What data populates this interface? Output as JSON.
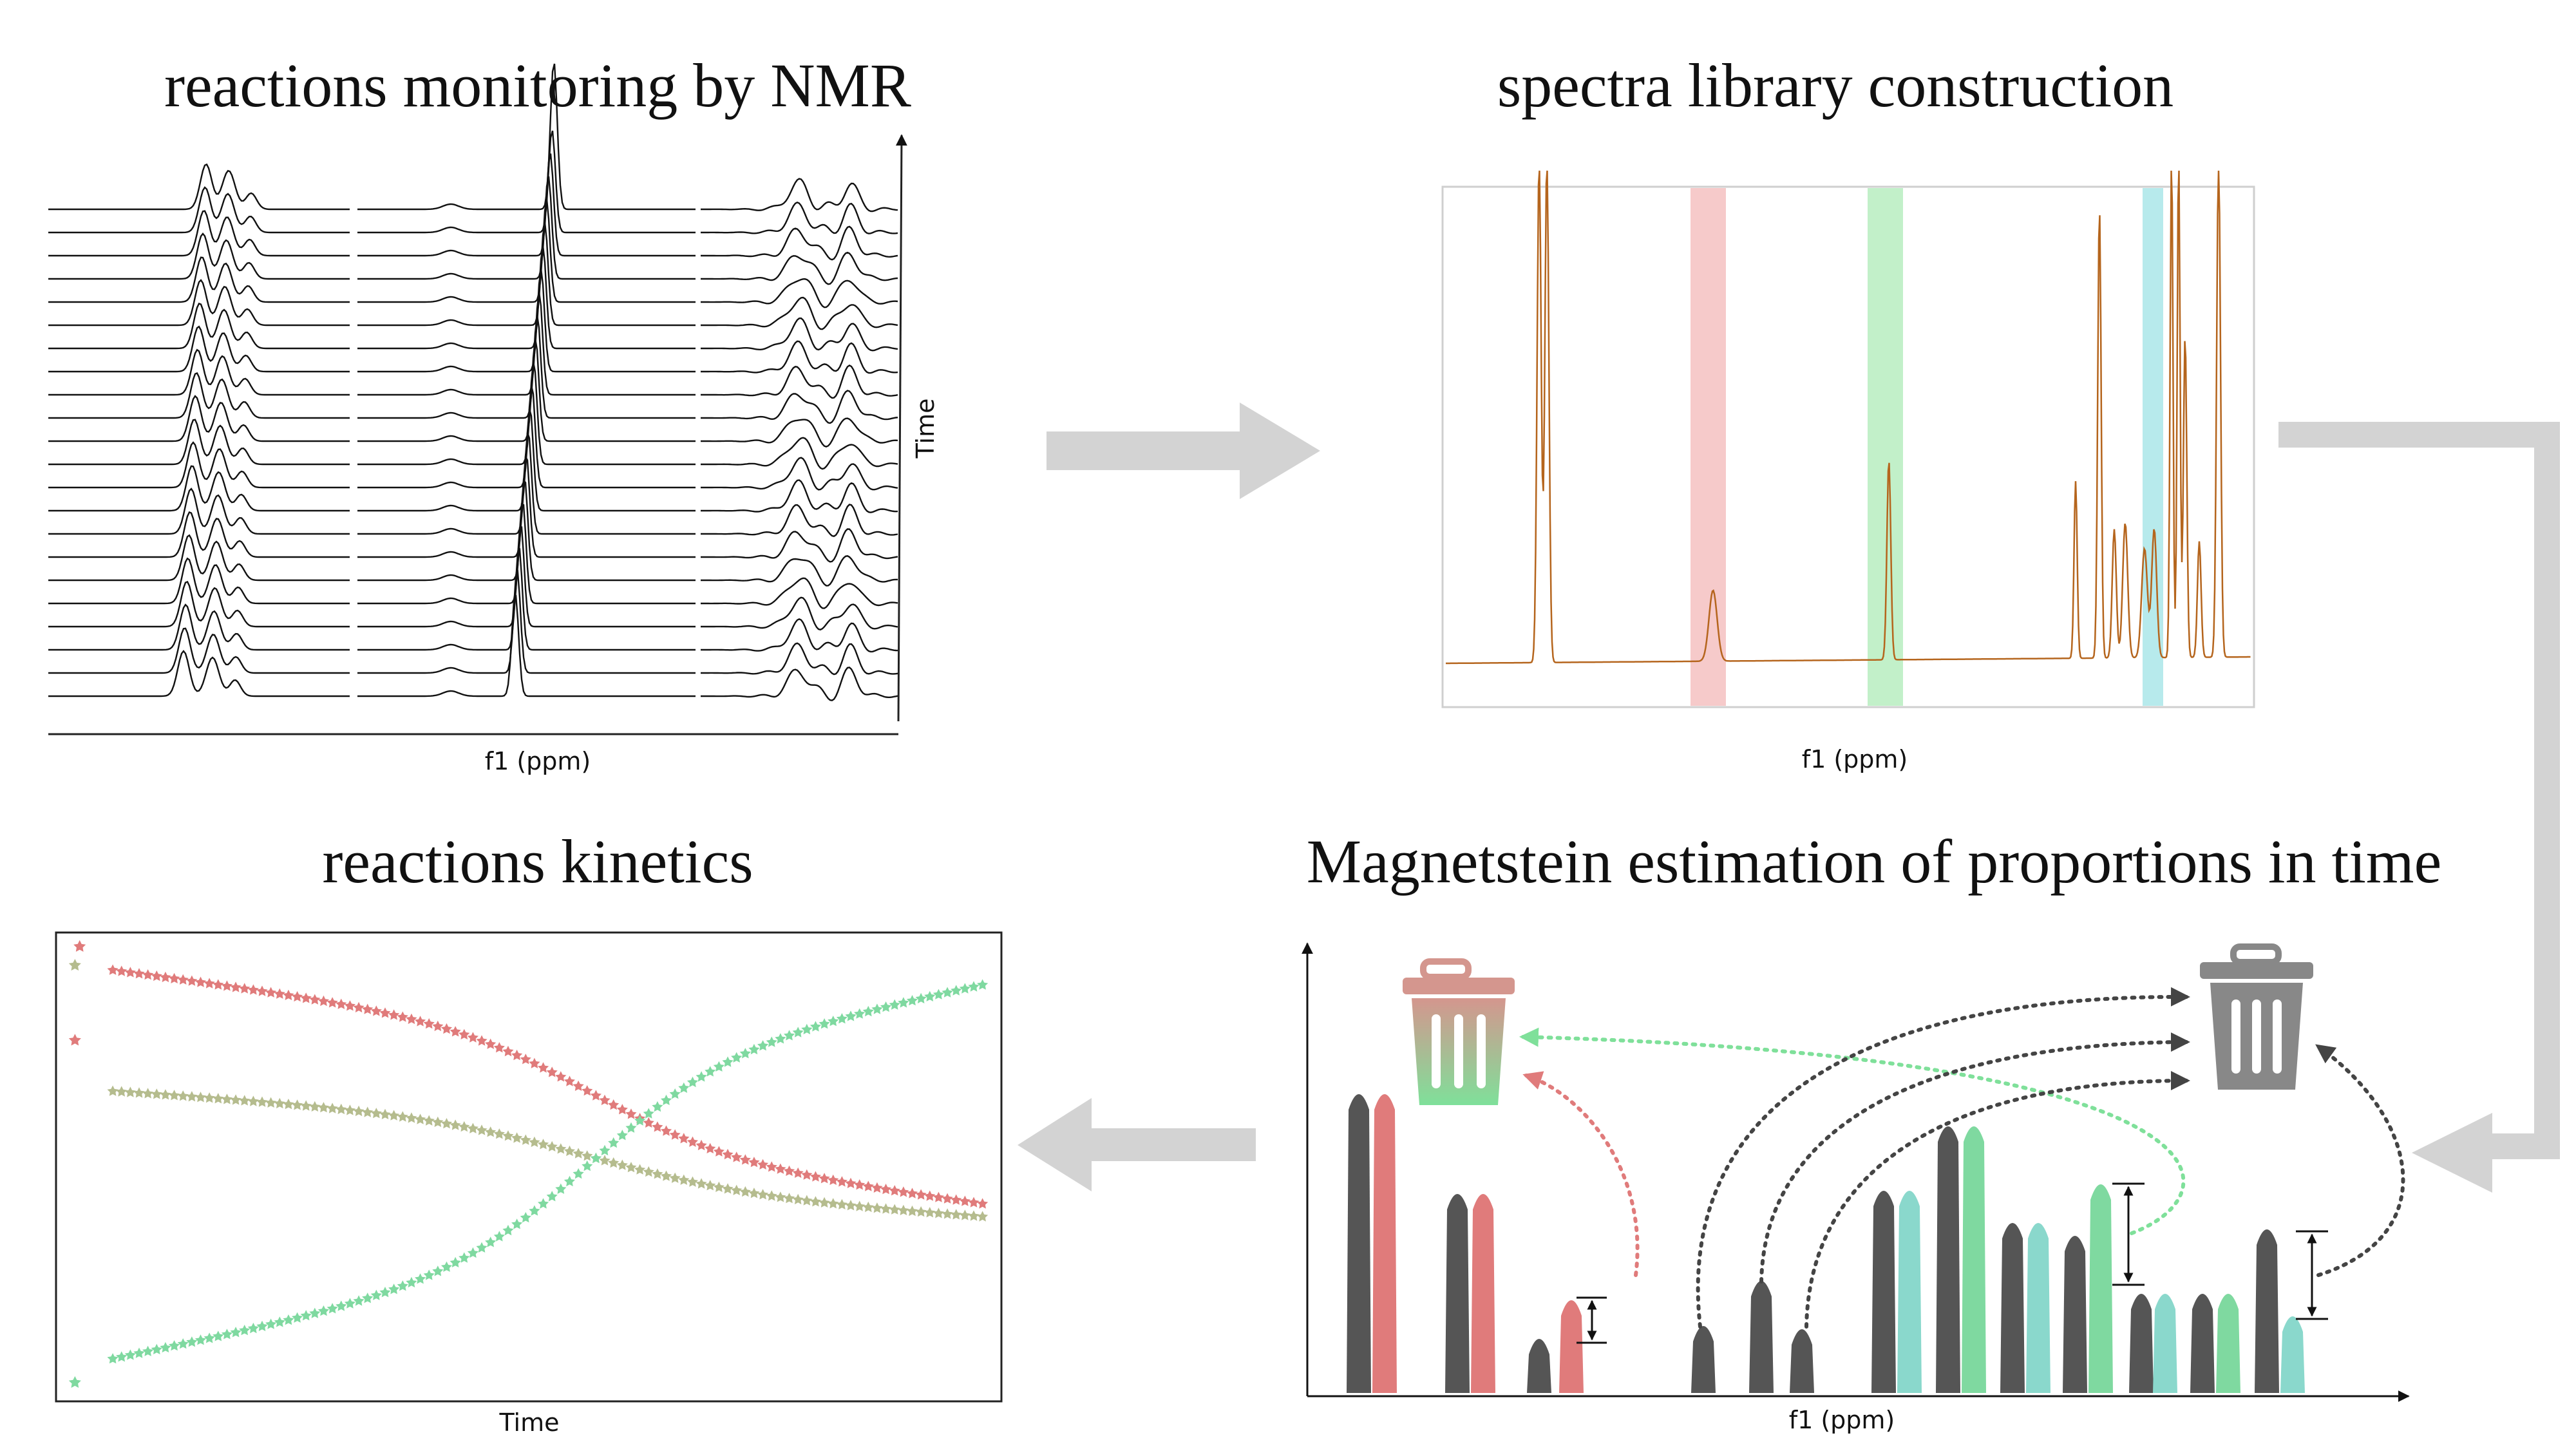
{
  "panels": {
    "monitoring": {
      "title": "reactions monitoring by NMR",
      "xlabel": "f1 (ppm)",
      "ylabel": "Time"
    },
    "library": {
      "title": "spectra library construction",
      "xlabel": "f1 (ppm)"
    },
    "magnetstein": {
      "title": "Magnetstein estimation of proportions in time",
      "xlabel": "f1 (ppm)"
    },
    "kinetics": {
      "title": "reactions kinetics",
      "xlabel": "Time"
    }
  },
  "colors": {
    "red": "#e07b7b",
    "green": "#7fd9a0",
    "teal": "#8ad8cc",
    "khaki": "#b5bc8e",
    "dark": "#555555",
    "brown": "#b5651d",
    "arrow": "#d3d3d3"
  },
  "icons": [
    "trash-icon-colored",
    "trash-icon-gray",
    "flow-arrow-right",
    "flow-arrow-down-left",
    "flow-arrow-left"
  ],
  "chart_data": {
    "type": "scatter",
    "xlabel": "Time",
    "series": [
      {
        "color": "red",
        "start": [
          0.05,
          0.94
        ],
        "end": [
          0.98,
          0.44
        ]
      },
      {
        "color": "khaki",
        "start": [
          0.05,
          0.65
        ],
        "end": [
          0.98,
          0.37
        ]
      },
      {
        "color": "green",
        "start": [
          0.05,
          0.11
        ],
        "end": [
          0.98,
          0.93
        ]
      }
    ]
  }
}
